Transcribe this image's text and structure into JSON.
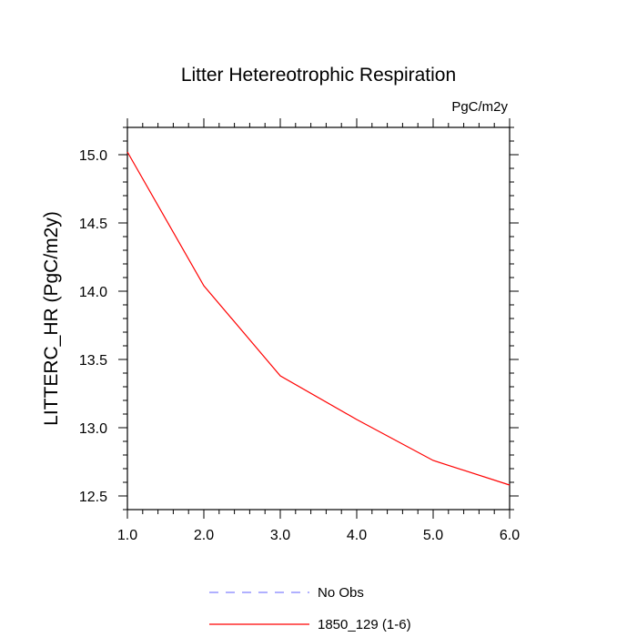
{
  "chart_data": {
    "type": "line",
    "title": "Litter Hetereotrophic Respiration",
    "units_label": "PgC/m2y",
    "xlabel": "",
    "ylabel": "LITTERC_HR  (PgC/m2y)",
    "xlim": [
      1.0,
      6.0
    ],
    "ylim": [
      12.4,
      15.2
    ],
    "x_ticks": [
      1.0,
      2.0,
      3.0,
      4.0,
      5.0,
      6.0
    ],
    "x_tick_labels": [
      "1.0",
      "2.0",
      "3.0",
      "4.0",
      "5.0",
      "6.0"
    ],
    "y_ticks": [
      12.5,
      13.0,
      13.5,
      14.0,
      14.5,
      15.0
    ],
    "y_tick_labels": [
      "12.5",
      "13.0",
      "13.5",
      "14.0",
      "14.5",
      "15.0"
    ],
    "grid": false,
    "legend_position": "bottom",
    "series": [
      {
        "name": "1850_129 (1-6)",
        "color": "#ff0000",
        "style": "solid",
        "x": [
          1,
          2,
          3,
          4,
          5,
          6
        ],
        "y": [
          15.02,
          14.04,
          13.38,
          13.06,
          12.76,
          12.58
        ]
      }
    ],
    "legend": [
      {
        "label": "No Obs",
        "color": "#8080ff",
        "style": "dashed"
      },
      {
        "label": "1850_129 (1-6)",
        "color": "#ff0000",
        "style": "solid"
      }
    ]
  }
}
